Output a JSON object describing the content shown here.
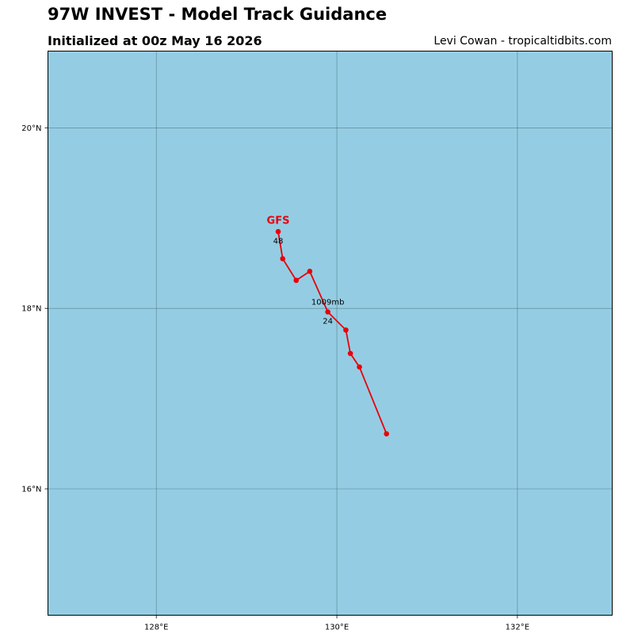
{
  "header": {
    "title": "97W INVEST - Model Track Guidance",
    "subtitle": "Initialized at 00z May 16 2026",
    "credit": "Levi Cowan - tropicaltidbits.com"
  },
  "map": {
    "ocean_color": "#94cde3",
    "grid_color": "#4a6b78",
    "lon_range": [
      126.8,
      133.05
    ],
    "lat_range": [
      14.6,
      20.85
    ],
    "lon_ticks": [
      {
        "value": 128,
        "label": "128°E"
      },
      {
        "value": 130,
        "label": "130°E"
      },
      {
        "value": 132,
        "label": "132°E"
      }
    ],
    "lat_ticks": [
      {
        "value": 20,
        "label": "20°N"
      },
      {
        "value": 18,
        "label": "18°N"
      },
      {
        "value": 16,
        "label": "16°N"
      }
    ]
  },
  "tracks": [
    {
      "model": "GFS",
      "color": "#e8000b",
      "points": [
        {
          "lon": 130.55,
          "lat": 16.61
        },
        {
          "lon": 130.25,
          "lat": 17.35
        },
        {
          "lon": 130.15,
          "lat": 17.5
        },
        {
          "lon": 130.1,
          "lat": 17.76
        },
        {
          "lon": 129.9,
          "lat": 17.96
        },
        {
          "lon": 129.7,
          "lat": 18.41
        },
        {
          "lon": 129.55,
          "lat": 18.31
        },
        {
          "lon": 129.4,
          "lat": 18.55
        },
        {
          "lon": 129.35,
          "lat": 18.85
        }
      ],
      "hour_labels": [
        {
          "point": 4,
          "text": "24"
        },
        {
          "point": 8,
          "text": "48"
        }
      ],
      "pressure_label": {
        "point": 4,
        "text": "1009mb"
      }
    }
  ]
}
